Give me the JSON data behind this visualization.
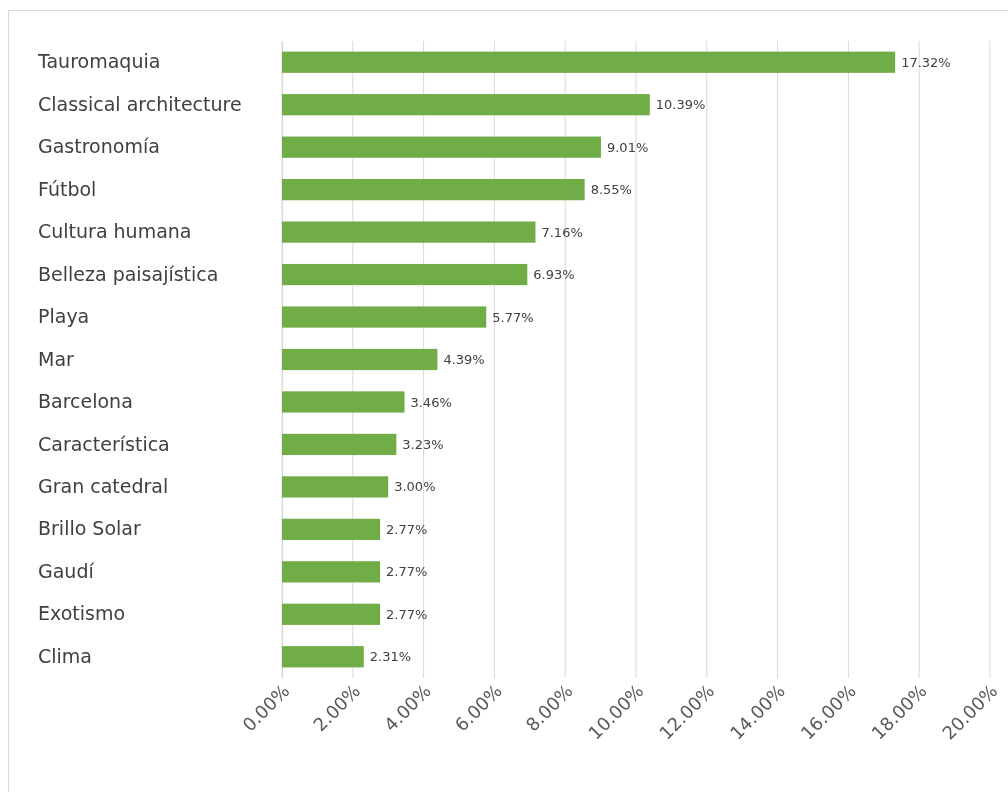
{
  "chart_data": {
    "type": "bar",
    "orientation": "horizontal",
    "categories": [
      "Tauromaquia",
      "Classical architecture",
      "Gastronomía",
      "Fútbol",
      "Cultura humana",
      "Belleza paisajística",
      "Playa",
      "Mar",
      "Barcelona",
      "Característica",
      "Gran catedral",
      "Brillo Solar",
      "Gaudí",
      "Exotismo",
      "Clima"
    ],
    "values": [
      17.32,
      10.39,
      9.01,
      8.55,
      7.16,
      6.93,
      5.77,
      4.39,
      3.46,
      3.23,
      3.0,
      2.77,
      2.77,
      2.77,
      2.31
    ],
    "value_labels": [
      "17.32%",
      "10.39%",
      "9.01%",
      "8.55%",
      "7.16%",
      "6.93%",
      "5.77%",
      "4.39%",
      "3.46%",
      "3.23%",
      "3.00%",
      "2.77%",
      "2.77%",
      "2.77%",
      "2.31%"
    ],
    "color": "#70ad47",
    "xlim": [
      0,
      20
    ],
    "xticks": [
      {
        "value": 0,
        "label": "0.00%"
      },
      {
        "value": 2,
        "label": "2.00%"
      },
      {
        "value": 4,
        "label": "4.00%"
      },
      {
        "value": 6,
        "label": "6.00%"
      },
      {
        "value": 8,
        "label": "8.00%"
      },
      {
        "value": 10,
        "label": "10.00%"
      },
      {
        "value": 12,
        "label": "12.00%"
      },
      {
        "value": 14,
        "label": "14.00%"
      },
      {
        "value": 16,
        "label": "16.00%"
      },
      {
        "value": 18,
        "label": "18.00%"
      },
      {
        "value": 20,
        "label": "20.00%"
      }
    ],
    "grid": "x"
  }
}
